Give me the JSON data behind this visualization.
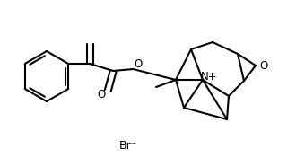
{
  "background_color": "#ffffff",
  "line_color": "#000000",
  "lw": 1.5,
  "figsize": [
    3.3,
    1.85
  ],
  "dpi": 100,
  "N_label": "N",
  "N_plus": "+",
  "O_epoxide": "O",
  "O_ester": "O",
  "O_carbonyl": "O",
  "Br_label": "Br",
  "Br_minus": "⁻",
  "fontsize": 8.5,
  "xlim": [
    0,
    330
  ],
  "ylim": [
    0,
    185
  ]
}
